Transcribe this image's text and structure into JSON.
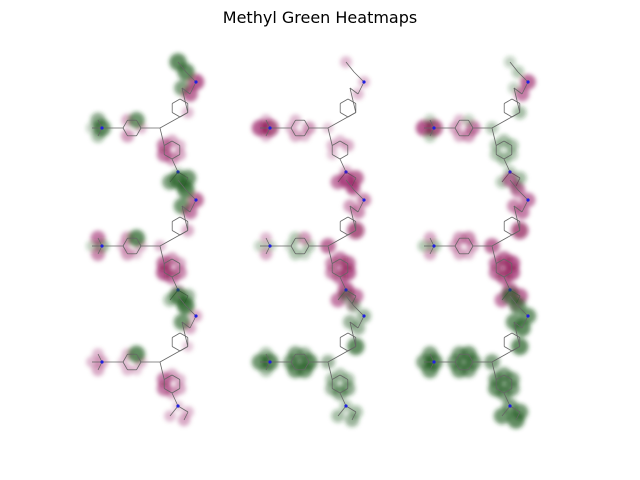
{
  "figure": {
    "title": "Methyl Green Heatmaps",
    "rows": 3,
    "cols": 3
  },
  "colors": {
    "positive": "#1e5a1e",
    "negative": "#8b0a50",
    "bond": "#666666",
    "nitrogen": "#2020e0"
  },
  "molecule": {
    "name": "methyl green",
    "atom_count": 27
  },
  "panels": [
    {
      "id": "r1c1",
      "weights": [
        0.9,
        0.2,
        -0.2,
        0.0,
        -0.4,
        0.0,
        -0.3,
        0.8,
        0.7,
        -0.7,
        -0.8,
        0.9,
        0.9,
        0.0,
        -0.2,
        -0.3,
        -0.4,
        -0.6,
        -0.6,
        -0.3,
        -0.2,
        0.1,
        0.8,
        0.7,
        0.5,
        0.4,
        0.6
      ]
    },
    {
      "id": "r1c2",
      "weights": [
        -0.9,
        -0.8,
        -0.4,
        -0.2,
        -0.3,
        -0.2,
        -0.2,
        0.0,
        0.0,
        -0.2,
        -0.2,
        0.0,
        -0.2,
        -0.1,
        0.0,
        0.0,
        0.0,
        -0.1,
        -0.2,
        -0.2,
        -0.3,
        -0.3,
        -0.7,
        -0.6,
        -0.6,
        -0.2,
        -0.2
      ]
    },
    {
      "id": "r1c3",
      "weights": [
        -0.9,
        -0.8,
        -0.6,
        -0.4,
        -0.3,
        -0.3,
        -0.2,
        0.2,
        0.2,
        -0.6,
        -0.7,
        0.3,
        0.2,
        0.3,
        0.4,
        0.3,
        0.4,
        0.3,
        0.3,
        0.4,
        0.4,
        0.3,
        0.4,
        0.3,
        0.3,
        0.3,
        0.2
      ]
    },
    {
      "id": "r2c1",
      "weights": [
        0.5,
        0.2,
        -0.2,
        -0.1,
        -0.4,
        -0.2,
        -0.4,
        0.9,
        0.8,
        -0.6,
        -0.7,
        0.9,
        0.9,
        -0.2,
        -0.3,
        -0.5,
        -0.6,
        -0.8,
        -0.7,
        -0.4,
        -0.3,
        -0.2,
        0.5,
        0.4,
        0.5,
        -0.5,
        -0.6
      ]
    },
    {
      "id": "r2c2",
      "weights": [
        0.2,
        0.2,
        0.3,
        0.2,
        0.3,
        0.2,
        0.3,
        -0.4,
        -0.4,
        -0.5,
        -0.5,
        -0.4,
        -0.6,
        -0.7,
        -0.9,
        -0.8,
        -0.6,
        -0.5,
        -0.5,
        -0.6,
        -0.7,
        -0.8,
        -0.6,
        -0.6,
        -0.3,
        -0.3,
        -0.2
      ]
    },
    {
      "id": "r2c3",
      "weights": [
        0.4,
        0.3,
        -0.3,
        -0.2,
        -0.3,
        -0.3,
        -0.4,
        -0.5,
        -0.5,
        -0.6,
        -0.6,
        -0.6,
        -0.6,
        -0.7,
        -0.9,
        -0.8,
        -0.7,
        -0.6,
        -0.6,
        -0.7,
        -0.8,
        -0.7,
        -0.7,
        -0.6,
        -0.4,
        -0.3,
        -0.3
      ]
    },
    {
      "id": "r3c1",
      "weights": [
        -0.3,
        -0.2,
        -0.2,
        -0.1,
        -0.2,
        -0.1,
        -0.2,
        0.9,
        0.8,
        -0.3,
        -0.3,
        0.9,
        0.9,
        0.0,
        -0.1,
        -0.3,
        -0.3,
        -0.6,
        -0.6,
        -0.3,
        -0.2,
        -0.1,
        -0.2,
        -0.2,
        -0.3,
        -0.3,
        -0.2
      ]
    },
    {
      "id": "r3c2",
      "weights": [
        0.9,
        0.8,
        0.9,
        0.8,
        0.8,
        0.7,
        0.7,
        0.5,
        0.5,
        0.5,
        0.5,
        0.4,
        0.4,
        0.5,
        0.9,
        0.6,
        0.6,
        0.5,
        0.4,
        0.4,
        0.4,
        0.3,
        0.4,
        0.4,
        0.5,
        0.4,
        0.4
      ]
    },
    {
      "id": "r3c3",
      "weights": [
        0.9,
        0.7,
        0.8,
        0.7,
        0.8,
        0.7,
        0.7,
        0.8,
        0.8,
        0.9,
        0.8,
        0.8,
        0.8,
        0.7,
        0.9,
        0.7,
        0.7,
        0.8,
        0.7,
        0.7,
        0.7,
        0.7,
        0.8,
        0.8,
        0.9,
        0.8,
        0.7
      ]
    }
  ]
}
